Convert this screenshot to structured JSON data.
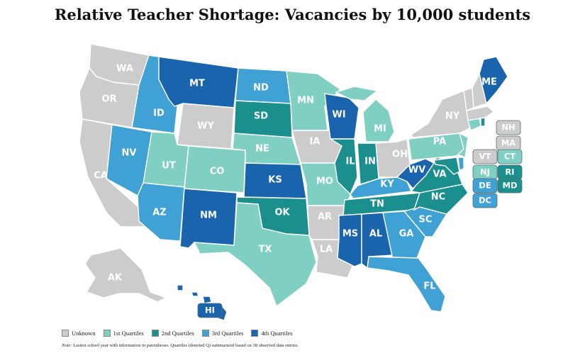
{
  "title": "Relative Teacher Shortage: Vacancies by 10,000 students",
  "colors": {
    "unknown": "#cccccc",
    "q1": "#7fcfc3",
    "q2": "#1b8e8e",
    "q3": "#3fa1d4",
    "q4": "#1a64ae"
  },
  "legend": [
    {
      "key": "unknown",
      "label": "Unknown"
    },
    {
      "key": "q1",
      "label": "1st Quartiles"
    },
    {
      "key": "q2",
      "label": "2nd Quartiles"
    },
    {
      "key": "q3",
      "label": "3rd Quartiles"
    },
    {
      "key": "q4",
      "label": "4th Quartiles"
    }
  ],
  "note": {
    "prefix": "Note:",
    "text": " Lastest school year with information in parentheses. Quartiles (denoted Q) summarized based on 38 observed data entries."
  },
  "states": [
    {
      "abbr": "WA",
      "cat": "unknown"
    },
    {
      "abbr": "OR",
      "cat": "unknown"
    },
    {
      "abbr": "CA",
      "cat": "unknown"
    },
    {
      "abbr": "ID",
      "cat": "q3"
    },
    {
      "abbr": "NV",
      "cat": "q3"
    },
    {
      "abbr": "MT",
      "cat": "q4"
    },
    {
      "abbr": "WY",
      "cat": "unknown"
    },
    {
      "abbr": "UT",
      "cat": "q1"
    },
    {
      "abbr": "AZ",
      "cat": "q3"
    },
    {
      "abbr": "CO",
      "cat": "q1"
    },
    {
      "abbr": "NM",
      "cat": "q4"
    },
    {
      "abbr": "ND",
      "cat": "q3"
    },
    {
      "abbr": "SD",
      "cat": "q2"
    },
    {
      "abbr": "NE",
      "cat": "q1"
    },
    {
      "abbr": "KS",
      "cat": "q4"
    },
    {
      "abbr": "OK",
      "cat": "q2"
    },
    {
      "abbr": "TX",
      "cat": "q1"
    },
    {
      "abbr": "MN",
      "cat": "q1"
    },
    {
      "abbr": "IA",
      "cat": "unknown"
    },
    {
      "abbr": "MO",
      "cat": "q1"
    },
    {
      "abbr": "AR",
      "cat": "unknown"
    },
    {
      "abbr": "LA",
      "cat": "unknown"
    },
    {
      "abbr": "WI",
      "cat": "q4"
    },
    {
      "abbr": "IL",
      "cat": "q2"
    },
    {
      "abbr": "MI",
      "cat": "q1"
    },
    {
      "abbr": "IN",
      "cat": "q2"
    },
    {
      "abbr": "OH",
      "cat": "unknown"
    },
    {
      "abbr": "KY",
      "cat": "q3"
    },
    {
      "abbr": "TN",
      "cat": "q2"
    },
    {
      "abbr": "MS",
      "cat": "q4"
    },
    {
      "abbr": "AL",
      "cat": "q4"
    },
    {
      "abbr": "GA",
      "cat": "q3"
    },
    {
      "abbr": "FL",
      "cat": "q3"
    },
    {
      "abbr": "SC",
      "cat": "q3"
    },
    {
      "abbr": "NC",
      "cat": "q2"
    },
    {
      "abbr": "VA",
      "cat": "q2"
    },
    {
      "abbr": "WV",
      "cat": "q4"
    },
    {
      "abbr": "PA",
      "cat": "q1"
    },
    {
      "abbr": "NY",
      "cat": "unknown"
    },
    {
      "abbr": "ME",
      "cat": "q4"
    },
    {
      "abbr": "AK",
      "cat": "unknown"
    },
    {
      "abbr": "HI",
      "cat": "q4"
    }
  ],
  "small_states": [
    {
      "abbr": "NH",
      "cat": "unknown"
    },
    {
      "abbr": "MA",
      "cat": "unknown"
    },
    {
      "abbr": "VT",
      "cat": "unknown"
    },
    {
      "abbr": "CT",
      "cat": "q1"
    },
    {
      "abbr": "NJ",
      "cat": "q1"
    },
    {
      "abbr": "RI",
      "cat": "q2"
    },
    {
      "abbr": "DE",
      "cat": "q3"
    },
    {
      "abbr": "MD",
      "cat": "q2"
    },
    {
      "abbr": "DC",
      "cat": "q3"
    }
  ]
}
